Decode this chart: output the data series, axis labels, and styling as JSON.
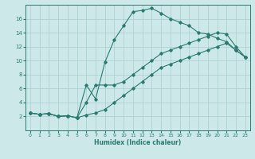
{
  "xlabel": "Humidex (Indice chaleur)",
  "background_color": "#cce8e8",
  "grid_color": "#aacece",
  "line_color": "#2a7a70",
  "xlim": [
    -0.5,
    23.5
  ],
  "ylim": [
    0,
    18
  ],
  "xticks": [
    0,
    1,
    2,
    3,
    4,
    5,
    6,
    7,
    8,
    9,
    10,
    11,
    12,
    13,
    14,
    15,
    16,
    17,
    18,
    19,
    20,
    21,
    22,
    23
  ],
  "yticks": [
    2,
    4,
    6,
    8,
    10,
    12,
    14,
    16
  ],
  "s1x": [
    0,
    1,
    2,
    3,
    4,
    5,
    6,
    7,
    8,
    9,
    10,
    11,
    12,
    13,
    14,
    15,
    16,
    17,
    18,
    19,
    20,
    21,
    22,
    23
  ],
  "s1y": [
    2.5,
    2.3,
    2.4,
    2.0,
    2.1,
    1.8,
    6.5,
    4.5,
    9.8,
    13.0,
    15.0,
    17.0,
    17.2,
    17.5,
    16.8,
    16.0,
    15.5,
    15.0,
    14.0,
    13.8,
    13.2,
    12.7,
    11.5,
    10.5
  ],
  "s2x": [
    0,
    1,
    2,
    3,
    4,
    5,
    6,
    7,
    8,
    9,
    10,
    11,
    12,
    13,
    14,
    15,
    16,
    17,
    18,
    19,
    20,
    21,
    22,
    23
  ],
  "s2y": [
    2.5,
    2.3,
    2.4,
    2.0,
    2.1,
    1.8,
    2.2,
    2.5,
    3.0,
    4.0,
    5.0,
    6.0,
    7.0,
    8.0,
    9.0,
    9.5,
    10.0,
    10.5,
    11.0,
    11.5,
    12.0,
    12.5,
    11.5,
    10.5
  ],
  "s3x": [
    0,
    1,
    2,
    3,
    4,
    5,
    6,
    7,
    8,
    9,
    10,
    11,
    12,
    13,
    14,
    15,
    16,
    17,
    18,
    19,
    20,
    21,
    22,
    23
  ],
  "s3y": [
    2.5,
    2.3,
    2.4,
    2.0,
    2.1,
    1.8,
    4.0,
    6.5,
    6.5,
    6.5,
    7.0,
    8.0,
    9.0,
    10.0,
    11.0,
    11.5,
    12.0,
    12.5,
    13.0,
    13.5,
    14.0,
    13.8,
    12.0,
    10.5
  ]
}
